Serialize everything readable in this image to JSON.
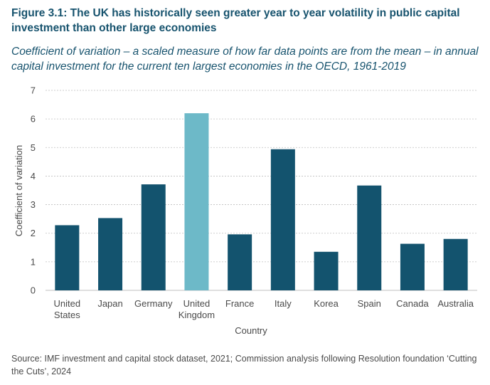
{
  "title": "Figure 3.1: The UK has historically seen greater year to year volatility in public capital investment than other large economies",
  "subtitle": "Coefficient of variation – a scaled measure of how far data points are from the mean – in annual capital investment for the current ten largest economies in the OECD, 1961-2019",
  "source": "Source: IMF investment and capital stock dataset, 2021; Commission analysis following Resolution foundation ‘Cutting the Cuts’, 2024",
  "colors": {
    "default_bar": "#13536e",
    "highlight_bar": "#6db9c8",
    "gridline": "#bfbfbf",
    "text": "#4a4a4a"
  },
  "chart_data": {
    "type": "bar",
    "categories": [
      [
        "United",
        "States"
      ],
      [
        "Japan"
      ],
      [
        "Germany"
      ],
      [
        "United",
        "Kingdom"
      ],
      [
        "France"
      ],
      [
        "Italy"
      ],
      [
        "Korea"
      ],
      [
        "Spain"
      ],
      [
        "Canada"
      ],
      [
        "Australia"
      ]
    ],
    "values": [
      2.28,
      2.53,
      3.71,
      6.2,
      1.96,
      4.94,
      1.35,
      3.67,
      1.63,
      1.8
    ],
    "highlight_index": 3,
    "xlabel": "Country",
    "ylabel": "Coefficient of variation",
    "ylim": [
      0,
      7
    ],
    "yticks": [
      0,
      1,
      2,
      3,
      4,
      5,
      6,
      7
    ],
    "grid": "horizontal dashed",
    "legend": "none"
  }
}
